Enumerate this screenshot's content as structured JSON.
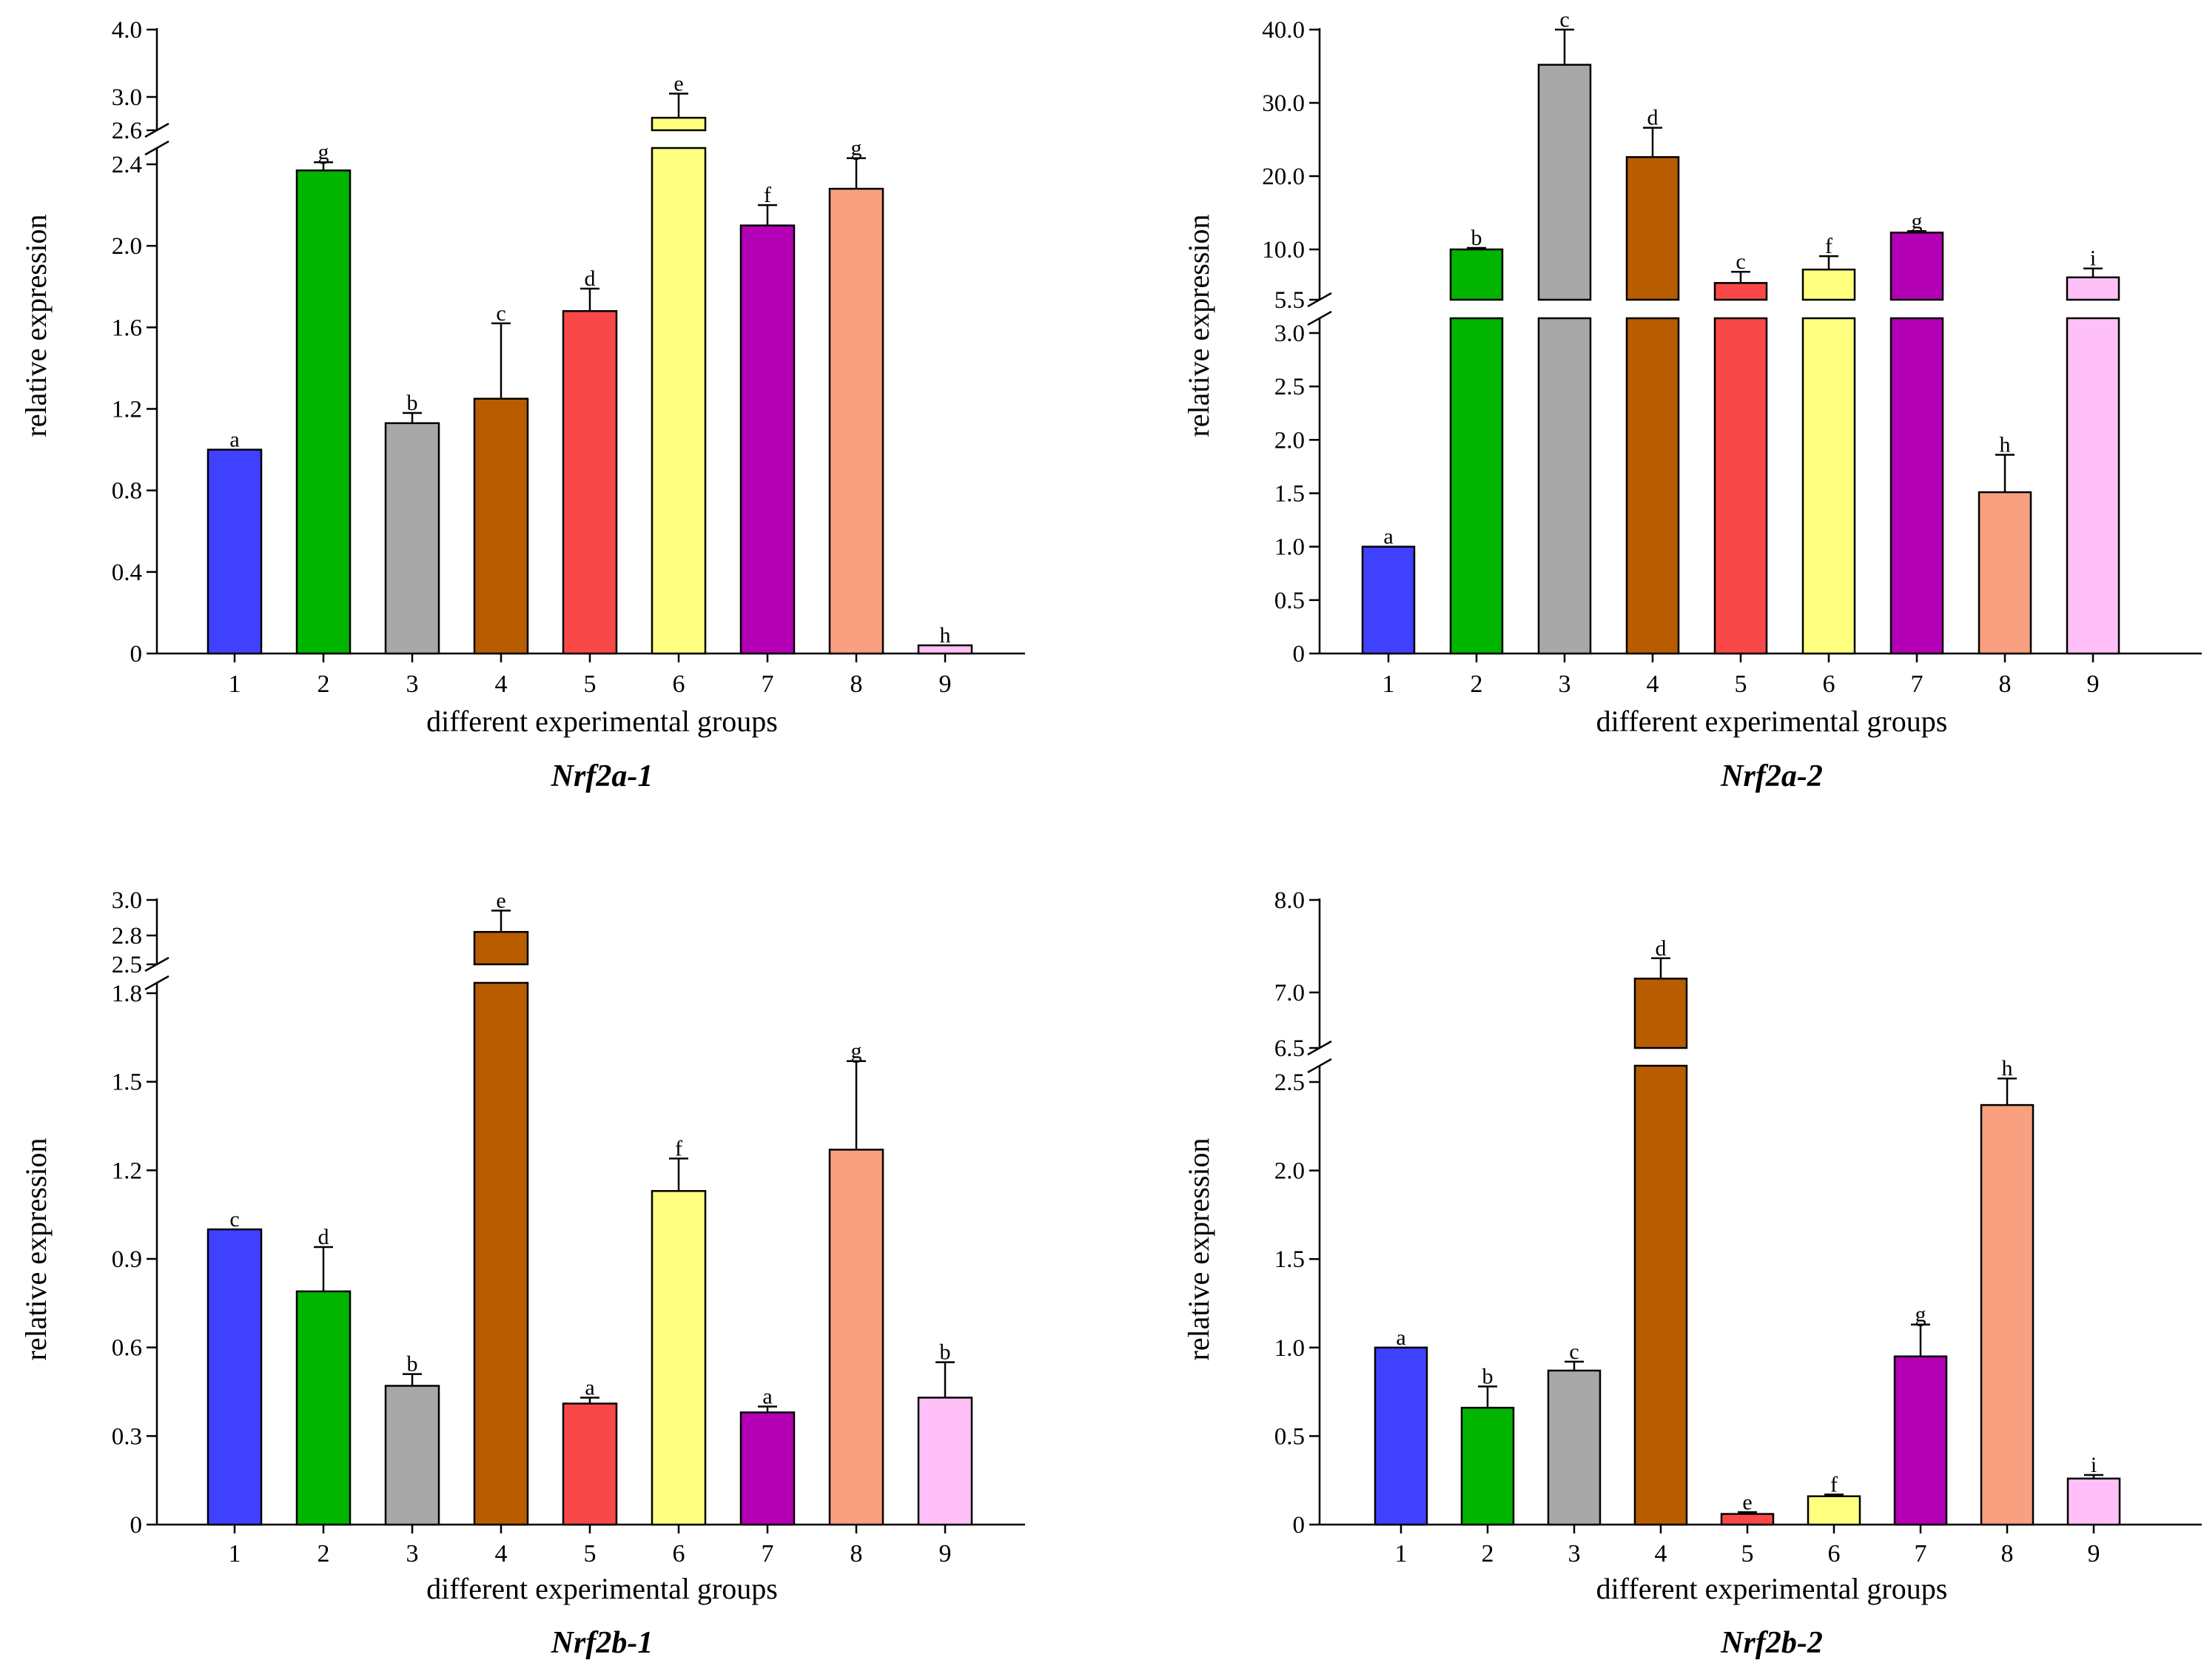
{
  "chart_data": [
    {
      "type": "bar",
      "title": "Nrf2a-1",
      "xlabel": "different experimental groups",
      "ylabel": "relative expression",
      "categories": [
        "1",
        "2",
        "3",
        "4",
        "5",
        "6",
        "7",
        "8",
        "9"
      ],
      "values": [
        1.0,
        2.37,
        1.13,
        1.25,
        1.68,
        2.75,
        2.1,
        2.28,
        0.04
      ],
      "errors": [
        0.0,
        0.04,
        0.05,
        0.37,
        0.11,
        0.3,
        0.1,
        0.15,
        0.0
      ],
      "labels": [
        "a",
        "g",
        "b",
        "c",
        "d",
        "e",
        "f",
        "g",
        "h"
      ],
      "colors": [
        "#4040ff",
        "#00b400",
        "#a8a8a8",
        "#b85c00",
        "#f84848",
        "#ffff80",
        "#b400b4",
        "#f8a080",
        "#ffc0f8"
      ],
      "ylim_lower": [
        0,
        2.5
      ],
      "ylim_upper": [
        2.6,
        4.0
      ],
      "yticks_lower": [
        "0",
        "0.4",
        "0.8",
        "1.2",
        "1.6",
        "2.0",
        "2.4"
      ],
      "yticks_upper": [
        "2.6",
        "3.0",
        "4.0"
      ]
    },
    {
      "type": "bar",
      "title": "Nrf2a-2",
      "xlabel": "different experimental groups",
      "ylabel": "relative expression",
      "categories": [
        "1",
        "2",
        "3",
        "4",
        "5",
        "6",
        "7",
        "8",
        "9"
      ],
      "values": [
        1.0,
        10.0,
        35.2,
        22.6,
        7.0,
        8.2,
        12.3,
        1.51,
        7.5
      ],
      "errors": [
        0.0,
        0.2,
        4.8,
        4.0,
        1.0,
        1.2,
        0.2,
        0.35,
        0.8
      ],
      "labels": [
        "a",
        "b",
        "c",
        "d",
        "c",
        "f",
        "g",
        "h",
        "i"
      ],
      "colors": [
        "#4040ff",
        "#00b400",
        "#a8a8a8",
        "#b85c00",
        "#f84848",
        "#ffff80",
        "#b400b4",
        "#f8a080",
        "#ffc0f8"
      ],
      "ylim_lower": [
        0,
        3.0
      ],
      "ylim_upper": [
        5.5,
        40.0
      ],
      "yticks_lower": [
        "0",
        "0.5",
        "1.0",
        "1.5",
        "2.0",
        "2.5",
        "3.0"
      ],
      "yticks_upper": [
        "5.5",
        "10.0",
        "20.0",
        "30.0",
        "40.0"
      ]
    },
    {
      "type": "bar",
      "title": "Nrf2b-1",
      "xlabel": "different experimental groups",
      "ylabel": "relative expression",
      "categories": [
        "1",
        "2",
        "3",
        "4",
        "5",
        "6",
        "7",
        "8",
        "9"
      ],
      "values": [
        1.0,
        0.79,
        0.47,
        2.82,
        0.41,
        1.13,
        0.38,
        1.27,
        0.43
      ],
      "errors": [
        0.0,
        0.15,
        0.04,
        0.12,
        0.02,
        0.11,
        0.02,
        0.3,
        0.12
      ],
      "labels": [
        "c",
        "d",
        "b",
        "e",
        "a",
        "f",
        "a",
        "g",
        "b"
      ],
      "colors": [
        "#4040ff",
        "#00b400",
        "#a8a8a8",
        "#b85c00",
        "#f84848",
        "#ffff80",
        "#b400b4",
        "#f8a080",
        "#ffc0f8"
      ],
      "ylim_lower": [
        0,
        1.8
      ],
      "ylim_upper": [
        2.5,
        3.0
      ],
      "yticks_lower": [
        "0",
        "0.3",
        "0.6",
        "0.9",
        "1.2",
        "1.5",
        "1.8"
      ],
      "yticks_upper": [
        "2.5",
        "2.8",
        "3.0"
      ]
    },
    {
      "type": "bar",
      "title": "Nrf2b-2",
      "xlabel": "different experimental groups",
      "ylabel": "relative expression",
      "categories": [
        "1",
        "2",
        "3",
        "4",
        "5",
        "6",
        "7",
        "8",
        "9"
      ],
      "values": [
        1.0,
        0.66,
        0.87,
        7.15,
        0.06,
        0.16,
        0.95,
        2.37,
        0.26
      ],
      "errors": [
        0.0,
        0.12,
        0.05,
        0.22,
        0.01,
        0.01,
        0.18,
        0.15,
        0.02
      ],
      "labels": [
        "a",
        "b",
        "c",
        "d",
        "e",
        "f",
        "g",
        "h",
        "i"
      ],
      "colors": [
        "#4040ff",
        "#00b400",
        "#a8a8a8",
        "#b85c00",
        "#f84848",
        "#ffff80",
        "#b400b4",
        "#f8a080",
        "#ffc0f8"
      ],
      "ylim_lower": [
        0,
        2.6
      ],
      "ylim_upper": [
        6.5,
        8.0
      ],
      "yticks_lower": [
        "0",
        "0.5",
        "1.0",
        "1.5",
        "2.0",
        "2.5"
      ],
      "yticks_upper": [
        "6.5",
        "7.0",
        "8.0"
      ]
    }
  ]
}
